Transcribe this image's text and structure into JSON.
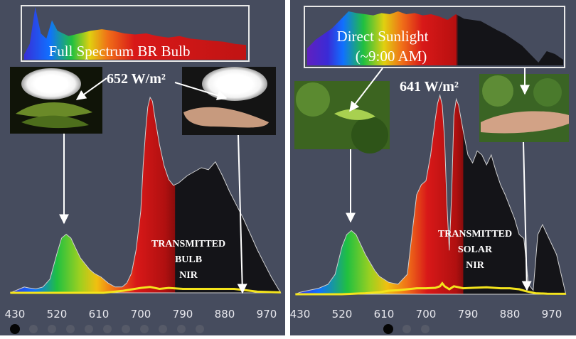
{
  "colors": {
    "background": "#464c5e",
    "spectrum_outline": "#d0d0d0",
    "transmitted_curve": "#f4e41c",
    "annotation": "#ffffff",
    "divider": "#ffffff"
  },
  "chart_data": [
    {
      "type": "area",
      "inset_label": "Full Spectrum BR Bulb",
      "irradiance_label": "652 W/m²",
      "annotation": [
        "TRANSMITTED",
        "BULB",
        "NIR"
      ],
      "x_ticks": [
        430,
        520,
        610,
        700,
        790,
        880,
        970
      ],
      "xlim": [
        420,
        1000
      ],
      "ylim": [
        0,
        1
      ],
      "photo_labels": [
        "leaf under bulb",
        "hand under bulb"
      ],
      "series": [
        {
          "x": [
            420,
            430,
            440,
            450,
            460,
            475,
            490,
            505,
            520,
            530,
            540,
            550,
            560,
            570,
            580,
            590,
            600,
            615,
            630,
            645,
            660,
            670,
            680,
            690,
            700,
            705,
            710,
            715,
            720,
            725,
            730,
            740,
            750,
            760,
            770,
            780,
            790,
            800,
            815,
            830,
            845,
            860,
            875,
            890,
            905,
            920,
            935,
            950,
            965,
            980,
            1000
          ],
          "y": [
            0,
            0.01,
            0.02,
            0.03,
            0.025,
            0.02,
            0.03,
            0.07,
            0.2,
            0.28,
            0.3,
            0.28,
            0.23,
            0.18,
            0.15,
            0.12,
            0.1,
            0.08,
            0.05,
            0.03,
            0.03,
            0.05,
            0.1,
            0.22,
            0.42,
            0.65,
            0.82,
            0.95,
            1.0,
            0.98,
            0.9,
            0.76,
            0.65,
            0.58,
            0.55,
            0.56,
            0.58,
            0.6,
            0.62,
            0.64,
            0.63,
            0.67,
            0.6,
            0.52,
            0.45,
            0.38,
            0.3,
            0.22,
            0.15,
            0.08,
            0
          ]
        },
        {
          "x": [
            420,
            500,
            560,
            620,
            660,
            700,
            720,
            740,
            760,
            790,
            820,
            860,
            900,
            930,
            950,
            1000
          ],
          "y": [
            0.0,
            0.0,
            0.0,
            0.0,
            0.01,
            0.025,
            0.03,
            0.02,
            0.025,
            0.02,
            0.02,
            0.02,
            0.02,
            0.012,
            0.006,
            0.002
          ]
        }
      ]
    },
    {
      "type": "area",
      "inset_label": [
        "Direct Sunlight",
        "(~9:00 AM)"
      ],
      "irradiance_label": "641 W/m²",
      "annotation": [
        "TRANSMITTED",
        "SOLAR",
        "NIR"
      ],
      "x_ticks": [
        430,
        520,
        610,
        700,
        790,
        880,
        970
      ],
      "xlim": [
        420,
        1000
      ],
      "ylim": [
        0,
        1
      ],
      "photo_labels": [
        "leaf in forest",
        "hand in forest"
      ],
      "series": [
        {
          "x": [
            420,
            430,
            450,
            470,
            490,
            505,
            520,
            530,
            540,
            550,
            560,
            570,
            580,
            590,
            600,
            620,
            640,
            660,
            670,
            680,
            690,
            700,
            710,
            720,
            725,
            730,
            735,
            740,
            745,
            750,
            755,
            760,
            765,
            770,
            780,
            790,
            800,
            810,
            820,
            830,
            840,
            850,
            860,
            870,
            880,
            890,
            900,
            910,
            920,
            930,
            940,
            950,
            960,
            970,
            980,
            1000
          ],
          "y": [
            0,
            0.01,
            0.02,
            0.03,
            0.05,
            0.1,
            0.24,
            0.3,
            0.32,
            0.3,
            0.25,
            0.2,
            0.16,
            0.12,
            0.09,
            0.06,
            0.05,
            0.1,
            0.3,
            0.5,
            0.55,
            0.57,
            0.7,
            0.88,
            0.96,
            1.0,
            0.95,
            0.78,
            0.45,
            0.22,
            0.5,
            0.9,
            0.98,
            0.95,
            0.82,
            0.7,
            0.66,
            0.72,
            0.7,
            0.65,
            0.7,
            0.62,
            0.55,
            0.5,
            0.44,
            0.38,
            0.3,
            0.28,
            0.05,
            0.02,
            0.3,
            0.35,
            0.3,
            0.25,
            0.2,
            0
          ]
        },
        {
          "x": [
            420,
            470,
            520,
            570,
            600,
            620,
            640,
            660,
            680,
            700,
            720,
            730,
            735,
            740,
            750,
            760,
            780,
            800,
            830,
            860,
            880,
            900,
            915,
            925,
            935,
            960,
            1000
          ],
          "y": [
            0.0,
            0.0,
            0.0,
            0.005,
            0.01,
            0.018,
            0.02,
            0.025,
            0.03,
            0.03,
            0.032,
            0.04,
            0.055,
            0.04,
            0.025,
            0.04,
            0.03,
            0.032,
            0.035,
            0.03,
            0.03,
            0.025,
            0.015,
            0.01,
            0.005,
            0.003,
            0.002
          ]
        }
      ]
    }
  ],
  "page_indicator": {
    "total": 11,
    "active": 0
  },
  "page_indicator_2": {
    "total": 3,
    "active": 0
  }
}
